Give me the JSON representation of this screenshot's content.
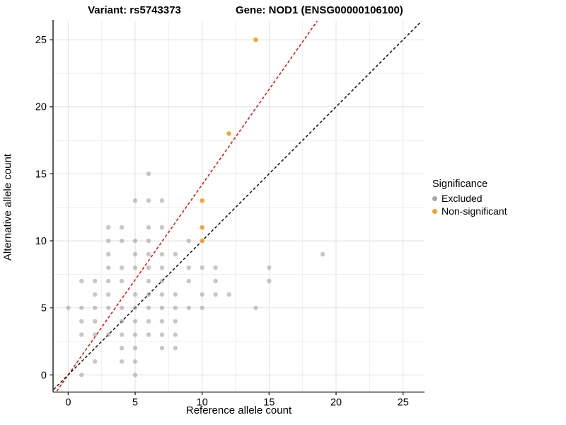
{
  "titles": {
    "left": "Variant: rs5743373",
    "right": "Gene: NOD1 (ENSG00000106100)"
  },
  "chart_data": {
    "type": "scatter",
    "xlabel": "Reference allele count",
    "ylabel": "Alternative allele count",
    "xticks": [
      0,
      5,
      10,
      15,
      20,
      25
    ],
    "yticks": [
      0,
      5,
      10,
      15,
      20,
      25
    ],
    "minor_step": 2.5,
    "xlim": [
      -1.13,
      26.6
    ],
    "ylim": [
      -1.28,
      26.38
    ],
    "grid": true,
    "point_radius": 3.2,
    "series": [
      {
        "name": "Excluded",
        "color": "#8f8f8f",
        "opacity": 0.5,
        "points": [
          [
            6,
            15
          ],
          [
            5,
            13
          ],
          [
            6,
            13
          ],
          [
            7,
            13
          ],
          [
            3,
            11
          ],
          [
            4,
            11
          ],
          [
            6,
            11
          ],
          [
            7,
            11
          ],
          [
            3,
            10
          ],
          [
            4,
            10
          ],
          [
            5,
            10
          ],
          [
            6,
            10
          ],
          [
            9,
            10
          ],
          [
            3,
            9
          ],
          [
            5,
            9
          ],
          [
            6,
            9
          ],
          [
            7,
            9
          ],
          [
            8,
            9
          ],
          [
            19,
            9
          ],
          [
            3,
            8
          ],
          [
            4,
            8
          ],
          [
            5,
            8
          ],
          [
            6,
            8
          ],
          [
            7,
            8
          ],
          [
            9,
            8
          ],
          [
            10,
            8
          ],
          [
            11,
            8
          ],
          [
            15,
            8
          ],
          [
            1,
            7
          ],
          [
            2,
            7
          ],
          [
            3,
            7
          ],
          [
            4,
            7
          ],
          [
            6,
            7
          ],
          [
            7,
            7
          ],
          [
            9,
            7
          ],
          [
            11,
            7
          ],
          [
            15,
            7
          ],
          [
            2,
            6
          ],
          [
            3,
            6
          ],
          [
            5,
            6
          ],
          [
            6,
            6
          ],
          [
            7,
            6
          ],
          [
            8,
            6
          ],
          [
            10,
            6
          ],
          [
            11,
            6
          ],
          [
            12,
            6
          ],
          [
            0,
            5
          ],
          [
            1,
            5
          ],
          [
            2,
            5
          ],
          [
            3,
            5
          ],
          [
            4,
            5
          ],
          [
            5,
            5
          ],
          [
            6,
            5
          ],
          [
            7,
            5
          ],
          [
            8,
            5
          ],
          [
            9,
            5
          ],
          [
            10,
            5
          ],
          [
            14,
            5
          ],
          [
            1,
            4
          ],
          [
            2,
            4
          ],
          [
            4,
            4
          ],
          [
            5,
            4
          ],
          [
            6,
            4
          ],
          [
            7,
            4
          ],
          [
            8,
            4
          ],
          [
            1,
            3
          ],
          [
            2,
            3
          ],
          [
            3,
            3
          ],
          [
            4,
            3
          ],
          [
            5,
            3
          ],
          [
            6,
            3
          ],
          [
            7,
            3
          ],
          [
            8,
            3
          ],
          [
            4,
            2
          ],
          [
            5,
            2
          ],
          [
            7,
            2
          ],
          [
            8,
            2
          ],
          [
            2,
            1
          ],
          [
            4,
            1
          ],
          [
            5,
            1
          ],
          [
            1,
            0
          ],
          [
            5,
            0
          ]
        ]
      },
      {
        "name": "Non-significant",
        "color": "#f5a01e",
        "opacity": 0.95,
        "points": [
          [
            10,
            10
          ],
          [
            10,
            11
          ],
          [
            10,
            13
          ],
          [
            12,
            18
          ],
          [
            14,
            25
          ]
        ]
      }
    ],
    "lines": [
      {
        "name": "expected-ratio-line",
        "color": "#ee1111",
        "slope": 1.42,
        "intercept": 0,
        "dash": "4,3"
      },
      {
        "name": "identity-line",
        "color": "#1a1a1a",
        "slope": 1.0,
        "intercept": 0,
        "dash": "4,3"
      }
    ]
  },
  "legend": {
    "title": "Significance",
    "entries": [
      {
        "label": "Excluded",
        "color": "#a6a6a6"
      },
      {
        "label": "Non-significant",
        "color": "#f5a01e"
      }
    ]
  },
  "style": {
    "axis_color": "#333333",
    "grid_major_color": "#e2e2e2",
    "grid_minor_color": "#efefef",
    "tick_label_color": "#000000",
    "tick_label_size": 14.5
  }
}
